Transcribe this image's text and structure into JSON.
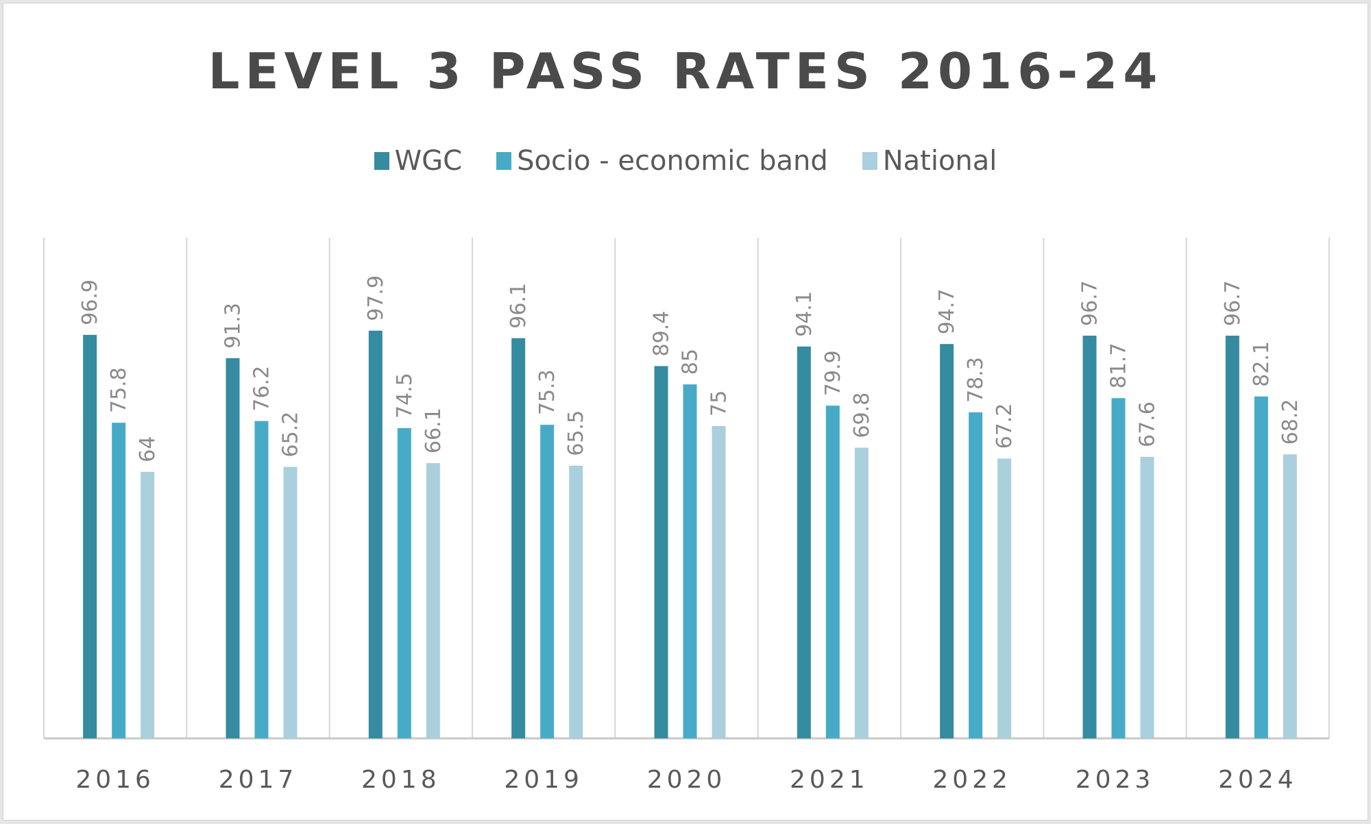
{
  "chart_data": {
    "type": "bar",
    "title": "LEVEL 3 PASS RATES 2016-24",
    "xlabel": "",
    "ylabel": "",
    "ylim": [
      0,
      100
    ],
    "grid": "vertical category separators",
    "legend": "top-center",
    "categories": [
      "2016",
      "2017",
      "2018",
      "2019",
      "2020",
      "2021",
      "2022",
      "2023",
      "2024"
    ],
    "series": [
      {
        "name": "WGC",
        "color": "#358ba0",
        "values": [
          96.9,
          91.3,
          97.9,
          96.1,
          89.4,
          94.1,
          94.7,
          96.7,
          96.7
        ]
      },
      {
        "name": "Socio - economic band",
        "color": "#47abc7",
        "values": [
          75.8,
          76.2,
          74.5,
          75.3,
          85,
          79.9,
          78.3,
          81.7,
          82.1
        ]
      },
      {
        "name": "National",
        "color": "#aacfdd",
        "values": [
          64,
          65.2,
          66.1,
          65.5,
          75,
          69.8,
          67.2,
          67.6,
          68.2
        ]
      }
    ]
  }
}
